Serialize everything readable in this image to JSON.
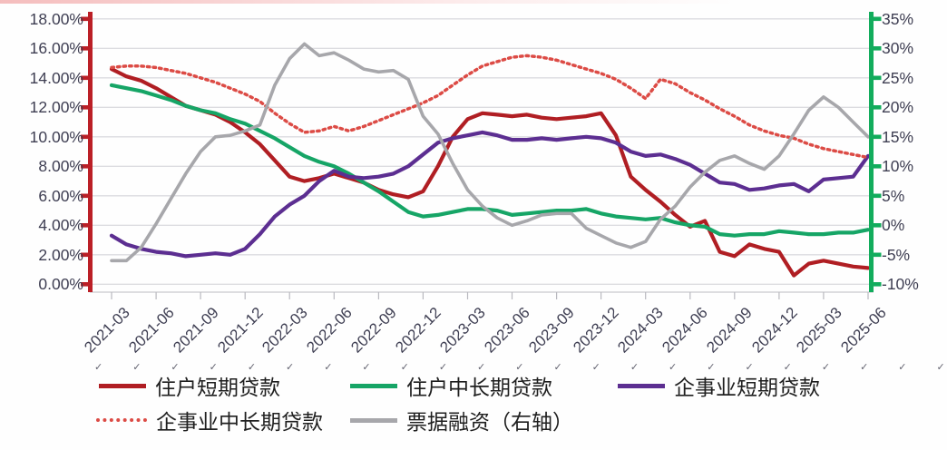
{
  "page": {
    "background": "#ffffff",
    "top_streak_color": "#f3b2b2"
  },
  "decorations": {
    "squiggle_glyph": "✓",
    "squiggle_count": 23
  },
  "chart_data": {
    "type": "line",
    "title": "",
    "grid": true,
    "plot_colors": {
      "gridline": "#dcdce0",
      "category_line": "#c9c9ce",
      "label": "#3e3e52"
    },
    "months": [
      "2021-03",
      "2021-04",
      "2021-05",
      "2021-06",
      "2021-07",
      "2021-08",
      "2021-09",
      "2021-10",
      "2021-11",
      "2021-12",
      "2022-01",
      "2022-02",
      "2022-03",
      "2022-04",
      "2022-05",
      "2022-06",
      "2022-07",
      "2022-08",
      "2022-09",
      "2022-10",
      "2022-11",
      "2022-12",
      "2023-01",
      "2023-02",
      "2023-03",
      "2023-04",
      "2023-05",
      "2023-06",
      "2023-07",
      "2023-08",
      "2023-09",
      "2023-10",
      "2023-11",
      "2023-12",
      "2024-01",
      "2024-02",
      "2024-03",
      "2024-04",
      "2024-05",
      "2024-06",
      "2024-07",
      "2024-08",
      "2024-09",
      "2024-10",
      "2024-11",
      "2024-12",
      "2025-01",
      "2025-02",
      "2025-03",
      "2025-04",
      "2025-05",
      "2025-06"
    ],
    "x_tick_labels": [
      "2021-03",
      "2021-06",
      "2021-09",
      "2021-12",
      "2022-03",
      "2022-06",
      "2022-09",
      "2022-12",
      "2023-03",
      "2023-06",
      "2023-09",
      "2023-12",
      "2024-03",
      "2024-06",
      "2024-09",
      "2024-12",
      "2025-03",
      "2025-06"
    ],
    "left_axis": {
      "min": 0,
      "max": 18,
      "step": 2,
      "color": "#bb1f26",
      "labels": [
        "18.00%",
        "16.00%",
        "14.00%",
        "12.00%",
        "10.00%",
        "8.00%",
        "6.00%",
        "4.00%",
        "2.00%",
        "0.00%"
      ]
    },
    "right_axis": {
      "min": -10,
      "max": 35,
      "step": 5,
      "color": "#12ac5c",
      "labels": [
        "35%",
        "30%",
        "25%",
        "20%",
        "15%",
        "10%",
        "5%",
        "0%",
        "-5%",
        "-10%"
      ]
    },
    "legend_rows": [
      [
        0,
        1,
        2
      ],
      [
        3,
        4
      ]
    ],
    "series": [
      {
        "name": "住户短期贷款",
        "axis": "left",
        "color": "#b01e23",
        "style": "solid",
        "values": [
          14.6,
          14.1,
          13.8,
          13.3,
          12.7,
          12.1,
          11.8,
          11.5,
          11.0,
          10.3,
          9.5,
          8.4,
          7.3,
          7.0,
          7.2,
          7.5,
          7.2,
          6.9,
          6.4,
          6.1,
          5.9,
          6.3,
          8.0,
          10.0,
          11.2,
          11.6,
          11.5,
          11.4,
          11.5,
          11.3,
          11.2,
          11.3,
          11.4,
          11.6,
          10.1,
          7.3,
          6.4,
          5.6,
          4.7,
          3.9,
          4.3,
          2.2,
          1.9,
          2.7,
          2.4,
          2.2,
          0.6,
          1.4,
          1.6,
          1.4,
          1.2,
          1.1
        ]
      },
      {
        "name": "住户中长期贷款",
        "axis": "left",
        "color": "#16a566",
        "style": "solid",
        "values": [
          13.5,
          13.3,
          13.1,
          12.8,
          12.5,
          12.1,
          11.8,
          11.6,
          11.2,
          10.9,
          10.4,
          9.9,
          9.3,
          8.7,
          8.3,
          8.0,
          7.5,
          6.9,
          6.3,
          5.6,
          4.9,
          4.6,
          4.7,
          4.9,
          5.1,
          5.1,
          5.0,
          4.7,
          4.8,
          4.9,
          5.0,
          5.0,
          5.1,
          4.8,
          4.6,
          4.5,
          4.4,
          4.5,
          4.2,
          4.0,
          3.9,
          3.4,
          3.3,
          3.4,
          3.4,
          3.6,
          3.5,
          3.4,
          3.4,
          3.5,
          3.5,
          3.7
        ]
      },
      {
        "name": "企事业短期贷款",
        "axis": "left",
        "color": "#5c2e91",
        "style": "solid",
        "values": [
          3.3,
          2.7,
          2.4,
          2.2,
          2.1,
          1.9,
          2.0,
          2.1,
          2.0,
          2.4,
          3.4,
          4.6,
          5.4,
          6.0,
          7.0,
          7.7,
          7.3,
          7.2,
          7.3,
          7.5,
          8.0,
          8.8,
          9.6,
          9.9,
          10.1,
          10.3,
          10.1,
          9.8,
          9.8,
          9.9,
          9.8,
          9.9,
          10.0,
          9.9,
          9.6,
          9.0,
          8.7,
          8.8,
          8.5,
          8.1,
          7.5,
          6.9,
          6.8,
          6.4,
          6.5,
          6.7,
          6.8,
          6.3,
          7.1,
          7.2,
          7.3,
          8.7
        ]
      },
      {
        "name": "企事业中长期贷款",
        "axis": "left",
        "color": "#dc4b45",
        "style": "dotted",
        "values": [
          14.7,
          14.8,
          14.8,
          14.7,
          14.5,
          14.3,
          14.0,
          13.7,
          13.3,
          12.9,
          12.4,
          11.6,
          10.9,
          10.3,
          10.4,
          10.7,
          10.4,
          10.7,
          11.1,
          11.5,
          11.9,
          12.3,
          12.8,
          13.5,
          14.2,
          14.8,
          15.1,
          15.4,
          15.5,
          15.4,
          15.2,
          14.9,
          14.6,
          14.3,
          13.9,
          13.3,
          12.6,
          13.9,
          13.6,
          13.0,
          12.5,
          11.9,
          11.4,
          10.8,
          10.4,
          10.1,
          9.9,
          9.5,
          9.2,
          9.0,
          8.8,
          8.6
        ]
      },
      {
        "name": "票据融资（右轴）",
        "axis": "right",
        "color": "#a7a7ab",
        "style": "solid",
        "values": [
          -6.0,
          -6.0,
          -3.75,
          0.25,
          4.5,
          8.75,
          12.5,
          15.0,
          15.25,
          16.0,
          17.0,
          23.75,
          28.25,
          30.75,
          28.75,
          29.25,
          28.0,
          26.5,
          26.0,
          26.25,
          24.75,
          18.5,
          15.5,
          10.5,
          6.0,
          3.25,
          1.25,
          0.0,
          0.75,
          1.75,
          2.0,
          2.0,
          -0.5,
          -1.75,
          -3.0,
          -3.75,
          -2.75,
          1.0,
          3.25,
          6.5,
          9.0,
          11.0,
          11.75,
          10.5,
          9.5,
          11.75,
          15.5,
          19.5,
          21.75,
          20.0,
          17.5,
          15.0
        ]
      }
    ]
  }
}
